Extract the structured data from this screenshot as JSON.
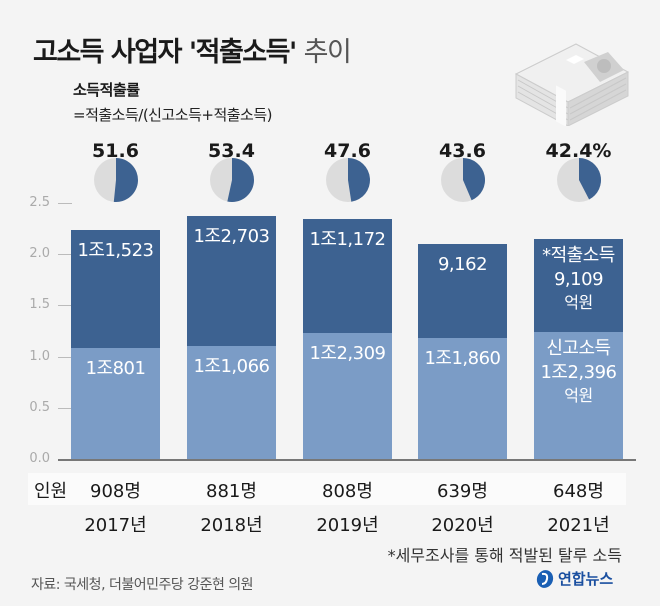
{
  "title": {
    "main": "고소득 사업자 '적출소득'",
    "suffix": "추이"
  },
  "subtitle": {
    "line1": "소득적출률",
    "line2": "=적출소득/(신고소득+적출소득)"
  },
  "icons": {
    "money": "money-stack-icon",
    "logo": "yonhap-logo-icon"
  },
  "colors": {
    "revealed": "#3d6291",
    "reported": "#7b9cc6",
    "pie_bg": "#dcdcdc"
  },
  "chart_data": {
    "type": "bar",
    "stacked": true,
    "categories": [
      "2017년",
      "2018년",
      "2019년",
      "2020년",
      "2021년"
    ],
    "ylim": [
      0,
      2.5
    ],
    "yticks": [
      "0.0",
      "0.5",
      "1.0",
      "1.5",
      "2.0",
      "2.5"
    ],
    "series": [
      {
        "name": "신고소득",
        "values": [
          1.0801,
          1.1066,
          1.2309,
          1.186,
          1.2396
        ],
        "labels": [
          "1조801",
          "1조1,066",
          "1조2,309",
          "1조1,860",
          "1조2,396"
        ]
      },
      {
        "name": "적출소득",
        "values": [
          1.1523,
          1.2703,
          1.1172,
          0.9162,
          0.9109
        ],
        "labels": [
          "1조1,523",
          "1조2,703",
          "1조1,172",
          "9,162",
          "9,109"
        ]
      }
    ],
    "rates": {
      "values": [
        51.6,
        53.4,
        47.6,
        43.6,
        42.4
      ],
      "labels": [
        "51.6",
        "53.4",
        "47.6",
        "43.6",
        "42.4%"
      ]
    },
    "last_bar_annotations": {
      "top_title": "*적출소득",
      "bot_title": "신고소득",
      "unit": "억원"
    },
    "count_label": "인원",
    "counts": [
      "908명",
      "881명",
      "808명",
      "639명",
      "648명"
    ]
  },
  "footnote": "*세무조사를 통해 적발된 탈루 소득",
  "source": "자료: 국세청, 더불어민주당 강준현 의원",
  "logo_text": "연합뉴스"
}
